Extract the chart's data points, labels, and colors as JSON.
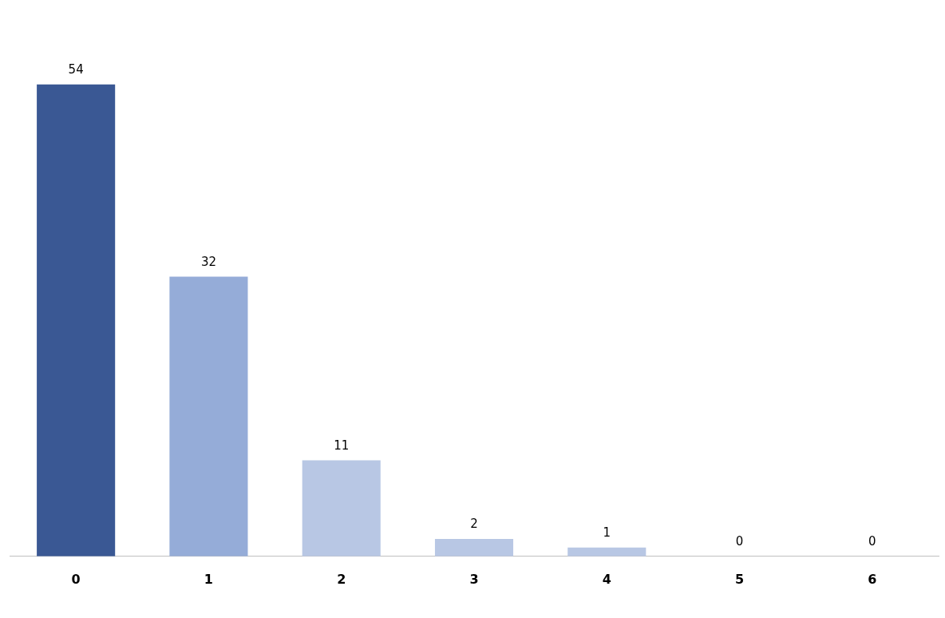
{
  "chart_data": {
    "type": "bar",
    "categories": [
      "0",
      "1",
      "2",
      "3",
      "4",
      "5",
      "6"
    ],
    "values": [
      54,
      32,
      11,
      2,
      1,
      0,
      0
    ],
    "colors": [
      "#3a5894",
      "#95acd8",
      "#b8c7e4",
      "#b8c7e4",
      "#b8c7e4",
      "#b8c7e4",
      "#b8c7e4"
    ],
    "data_labels": true,
    "grid": false,
    "legend": false
  }
}
